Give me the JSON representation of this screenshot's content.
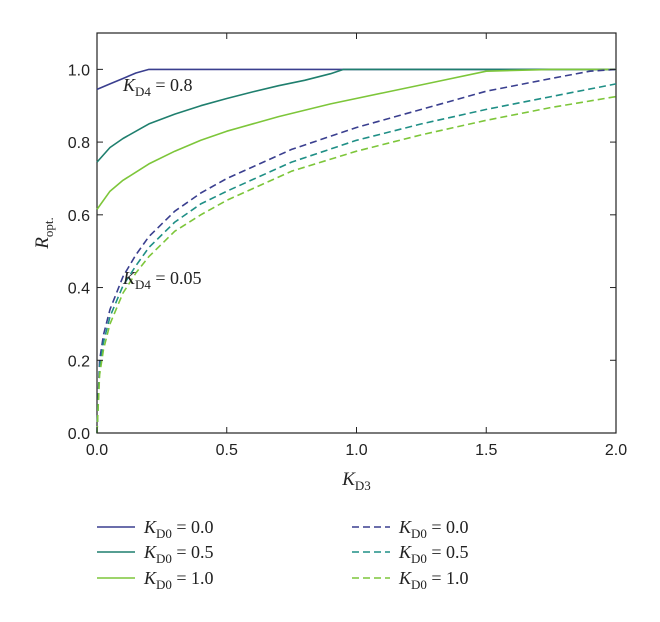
{
  "chart_data": {
    "type": "line",
    "xlabel": {
      "main": "K",
      "sub": "D3"
    },
    "ylabel": {
      "main": "R",
      "sub": "opt."
    },
    "xlim": [
      0,
      2
    ],
    "ylim": [
      0,
      1.1
    ],
    "x_ticks": [
      0.0,
      0.5,
      1.0,
      1.5,
      2.0
    ],
    "x_tick_labels": [
      "0.0",
      "0.5",
      "1.0",
      "1.5",
      "2.0"
    ],
    "y_ticks": [
      0.0,
      0.2,
      0.4,
      0.6,
      0.8,
      1.0
    ],
    "y_tick_labels": [
      "0.0",
      "0.2",
      "0.4",
      "0.6",
      "0.8",
      "1.0"
    ],
    "grid": false,
    "legend_position": "bottom",
    "annotations": [
      {
        "k": "K",
        "sub": "D4",
        "rest": " = 0.8",
        "x": 0.1,
        "y": 0.94
      },
      {
        "k": "K",
        "sub": "D4",
        "rest": " = 0.05",
        "x": 0.1,
        "y": 0.41
      }
    ],
    "series": [
      {
        "label_k": "K",
        "label_sub": "D0",
        "label_rest": " = 0.0",
        "color": "#3a3f8f",
        "dash": "solid",
        "x": [
          0,
          0.05,
          0.1,
          0.15,
          0.2,
          0.5,
          1.0,
          1.5,
          2.0
        ],
        "y": [
          0.945,
          0.96,
          0.975,
          0.99,
          1.0,
          1.0,
          1.0,
          1.0,
          1.0
        ]
      },
      {
        "label_k": "K",
        "label_sub": "D0",
        "label_rest": " = 0.5",
        "color": "#1f7f6e",
        "dash": "solid",
        "x": [
          0,
          0.05,
          0.1,
          0.2,
          0.3,
          0.4,
          0.5,
          0.6,
          0.7,
          0.8,
          0.9,
          0.95,
          1.0,
          1.5,
          2.0
        ],
        "y": [
          0.745,
          0.785,
          0.81,
          0.85,
          0.877,
          0.9,
          0.92,
          0.938,
          0.955,
          0.97,
          0.988,
          1.0,
          1.0,
          1.0,
          1.0
        ]
      },
      {
        "label_k": "K",
        "label_sub": "D0",
        "label_rest": " = 1.0",
        "color": "#7dc63a",
        "dash": "solid",
        "x": [
          0,
          0.05,
          0.1,
          0.2,
          0.3,
          0.4,
          0.5,
          0.7,
          0.9,
          1.1,
          1.3,
          1.5,
          1.75,
          2.0
        ],
        "y": [
          0.615,
          0.665,
          0.695,
          0.74,
          0.775,
          0.805,
          0.83,
          0.87,
          0.905,
          0.935,
          0.965,
          0.995,
          1.0,
          1.0
        ]
      },
      {
        "label_k": "K",
        "label_sub": "D0",
        "label_rest": " = 0.0",
        "color": "#3a3f8f",
        "dash": "dashed",
        "x": [
          0,
          0.01,
          0.025,
          0.05,
          0.1,
          0.15,
          0.2,
          0.3,
          0.4,
          0.5,
          0.75,
          1.0,
          1.25,
          1.5,
          1.75,
          1.9,
          2.0
        ],
        "y": [
          0,
          0.2,
          0.27,
          0.34,
          0.43,
          0.49,
          0.54,
          0.61,
          0.66,
          0.7,
          0.78,
          0.84,
          0.89,
          0.94,
          0.975,
          0.995,
          1.0
        ]
      },
      {
        "label_k": "K",
        "label_sub": "D0",
        "label_rest": " = 0.5",
        "color": "#1f8f86",
        "dash": "dashed",
        "x": [
          0,
          0.01,
          0.025,
          0.05,
          0.1,
          0.15,
          0.2,
          0.3,
          0.4,
          0.5,
          0.75,
          1.0,
          1.25,
          1.5,
          1.75,
          2.0
        ],
        "y": [
          0,
          0.18,
          0.25,
          0.32,
          0.405,
          0.46,
          0.51,
          0.58,
          0.63,
          0.665,
          0.745,
          0.805,
          0.85,
          0.89,
          0.925,
          0.96
        ]
      },
      {
        "label_k": "K",
        "label_sub": "D0",
        "label_rest": " = 1.0",
        "color": "#7dc63a",
        "dash": "dashed",
        "x": [
          0,
          0.01,
          0.025,
          0.05,
          0.1,
          0.15,
          0.2,
          0.3,
          0.4,
          0.5,
          0.75,
          1.0,
          1.25,
          1.5,
          1.75,
          2.0
        ],
        "y": [
          0,
          0.16,
          0.23,
          0.3,
          0.385,
          0.44,
          0.485,
          0.555,
          0.6,
          0.64,
          0.72,
          0.775,
          0.82,
          0.86,
          0.895,
          0.925
        ]
      }
    ]
  }
}
